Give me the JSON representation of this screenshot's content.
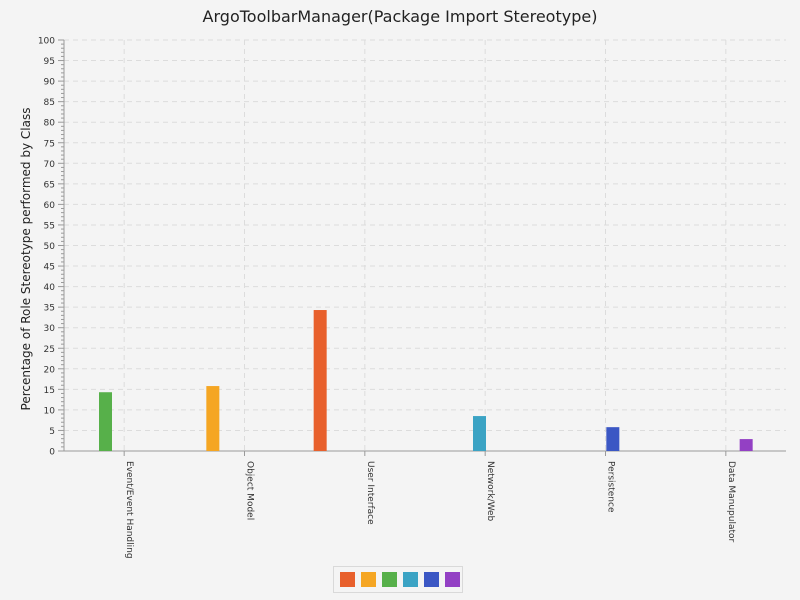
{
  "chart_data": {
    "type": "bar",
    "title": "ArgoToolbarManager(Package Import Stereotype)",
    "xlabel": "",
    "ylabel": "Percentage of Role Stereotype performed by Class",
    "ylim": [
      0,
      100
    ],
    "yticks": [
      "0",
      "5",
      "10",
      "15",
      "20",
      "25",
      "30",
      "35",
      "40",
      "45",
      "50",
      "55",
      "60",
      "65",
      "70",
      "75",
      "80",
      "85",
      "90",
      "95",
      "100"
    ],
    "categories": [
      "Event/Event Handling",
      "Object Model",
      "User Interface",
      "Network/Web",
      "Persistence",
      "Data Manupulator"
    ],
    "series": [
      {
        "name": "",
        "color": "#e8602c",
        "values": [
          0,
          0,
          34.3,
          0,
          0,
          0
        ]
      },
      {
        "name": "",
        "color": "#f5a623",
        "values": [
          0,
          15.8,
          0,
          0,
          0,
          0
        ]
      },
      {
        "name": "",
        "color": "#57b04a",
        "values": [
          14.3,
          0,
          0,
          0,
          0,
          0
        ]
      },
      {
        "name": "",
        "color": "#3ba3c4",
        "values": [
          0,
          0,
          0,
          8.5,
          0,
          0
        ]
      },
      {
        "name": "",
        "color": "#3b57c4",
        "values": [
          0,
          0,
          0,
          0,
          5.8,
          0
        ]
      },
      {
        "name": "",
        "color": "#9340c4",
        "values": [
          0,
          0,
          0,
          0,
          0,
          2.9
        ]
      }
    ],
    "grid": true,
    "legend": "bottom"
  }
}
